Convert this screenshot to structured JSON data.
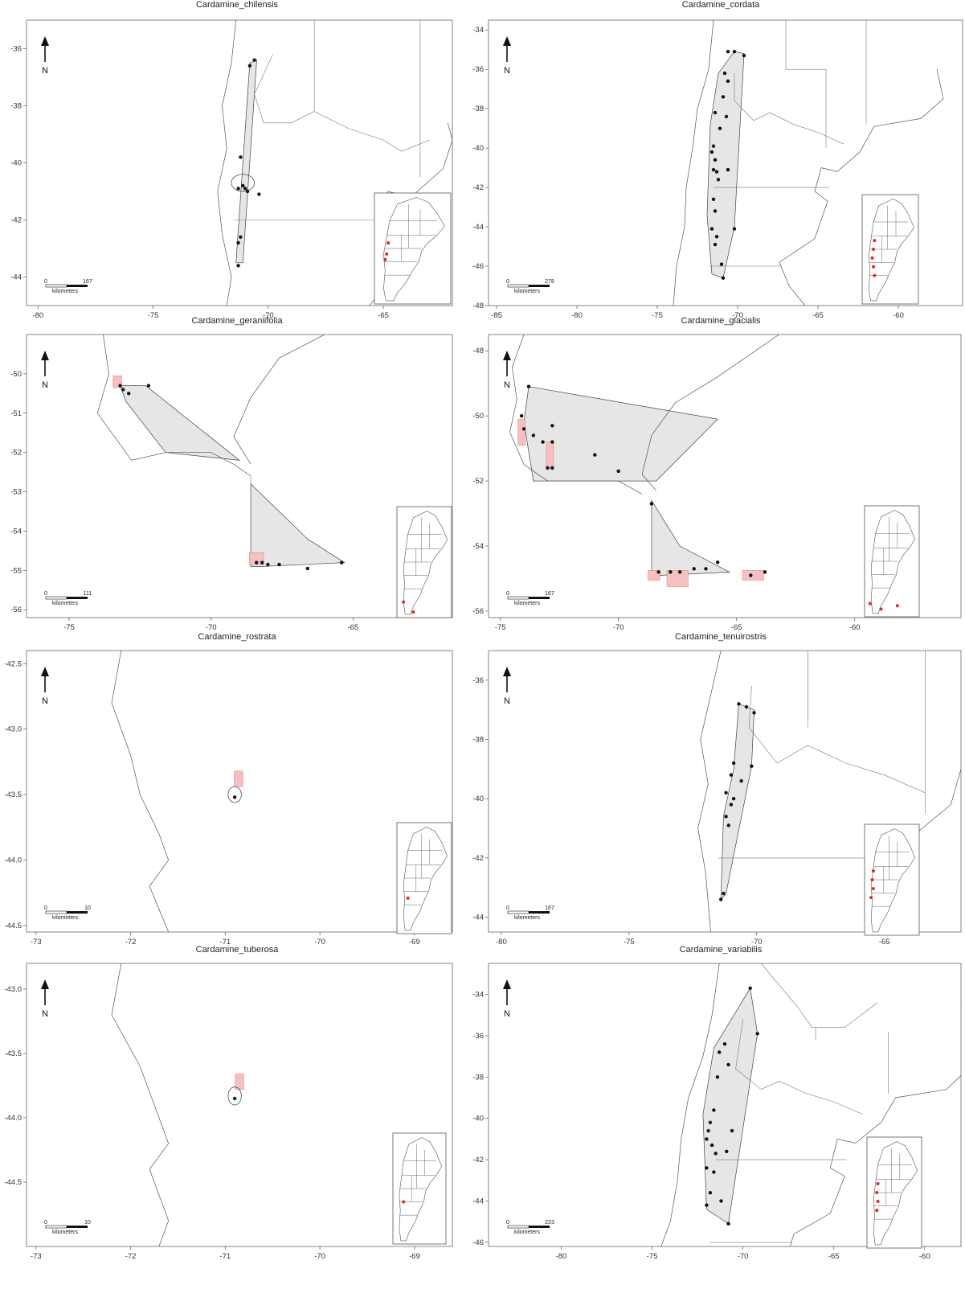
{
  "panels": [
    {
      "title": "Cardamine_chilensis",
      "x_ticks": [
        "-80",
        "-75",
        "-70",
        "-65"
      ],
      "y_ticks": [
        "-36",
        "-38",
        "-40",
        "-42",
        "-44"
      ],
      "scale": {
        "start": "0",
        "end": "167",
        "unit": "kilometers"
      },
      "north": "N",
      "extent": {
        "lon": [
          -80.5,
          -62
        ],
        "lat": [
          -45,
          -35
        ]
      }
    },
    {
      "title": "Cardamine_cordata",
      "x_ticks": [
        "-85",
        "-80",
        "-75",
        "-70",
        "-65",
        "-60"
      ],
      "y_ticks": [
        "-34",
        "-36",
        "-38",
        "-40",
        "-42",
        "-44",
        "-46",
        "-48"
      ],
      "scale": {
        "start": "0",
        "end": "278",
        "unit": "kilometers"
      },
      "north": "N",
      "extent": {
        "lon": [
          -85.5,
          -56
        ],
        "lat": [
          -48,
          -33.5
        ]
      }
    },
    {
      "title": "Cardamine_geraniifolia",
      "x_ticks": [
        "-75",
        "-70",
        "-65"
      ],
      "y_ticks": [
        "-50",
        "-51",
        "-52",
        "-53",
        "-54",
        "-55",
        "-56"
      ],
      "scale": {
        "start": "0",
        "end": "111",
        "unit": "kilometers"
      },
      "north": "N",
      "extent": {
        "lon": [
          -76.5,
          -61.5
        ],
        "lat": [
          -56.2,
          -49
        ]
      }
    },
    {
      "title": "Cardamine_glacialis",
      "x_ticks": [
        "-75",
        "-70",
        "-65",
        "-60"
      ],
      "y_ticks": [
        "-48",
        "-50",
        "-52",
        "-54",
        "-56"
      ],
      "scale": {
        "start": "0",
        "end": "167",
        "unit": "kilometers"
      },
      "north": "N",
      "extent": {
        "lon": [
          -75.5,
          -55.5
        ],
        "lat": [
          -56.2,
          -47.5
        ]
      }
    },
    {
      "title": "Cardamine_rostrata",
      "x_ticks": [
        "-73",
        "-72",
        "-71",
        "-70",
        "-69"
      ],
      "y_ticks": [
        "-42.5",
        "-43.0",
        "-43.5",
        "-44.0",
        "-44.5"
      ],
      "scale": {
        "start": "0",
        "end": "10",
        "unit": "kilometers"
      },
      "north": "N",
      "extent": {
        "lon": [
          -73.1,
          -68.6
        ],
        "lat": [
          -44.55,
          -42.4
        ]
      }
    },
    {
      "title": "Cardamine_tenuirostris",
      "x_ticks": [
        "-80",
        "-75",
        "-70",
        "-65"
      ],
      "y_ticks": [
        "-36",
        "-38",
        "-40",
        "-42",
        "-44"
      ],
      "scale": {
        "start": "0",
        "end": "167",
        "unit": "kilometers"
      },
      "north": "N",
      "extent": {
        "lon": [
          -80.5,
          -62
        ],
        "lat": [
          -44.5,
          -35
        ]
      }
    },
    {
      "title": "Cardamine_tuberosa",
      "x_ticks": [
        "-73",
        "-72",
        "-71",
        "-70",
        "-69"
      ],
      "y_ticks": [
        "-43.0",
        "-43.5",
        "-44.0",
        "-44.5"
      ],
      "scale": {
        "start": "0",
        "end": "10",
        "unit": "kilometers"
      },
      "north": "N",
      "extent": {
        "lon": [
          -73.1,
          -68.6
        ],
        "lat": [
          -45,
          -42.8
        ]
      }
    },
    {
      "title": "Cardamine_variabilis",
      "x_ticks": [
        "-80",
        "-75",
        "-70",
        "-65",
        "-60"
      ],
      "y_ticks": [
        "-34",
        "-36",
        "-38",
        "-40",
        "-42",
        "-44",
        "-46"
      ],
      "scale": {
        "start": "0",
        "end": "223",
        "unit": "kilometers"
      },
      "north": "N",
      "extent": {
        "lon": [
          -84,
          -58
        ],
        "lat": [
          -46.2,
          -32.5
        ]
      }
    }
  ],
  "colors": {
    "hull_fill": "#e6e6e6",
    "occurrence_point": "#111111",
    "uncertainty_box": "#f6c0c0",
    "inset_occurrence": "#ee2222"
  }
}
